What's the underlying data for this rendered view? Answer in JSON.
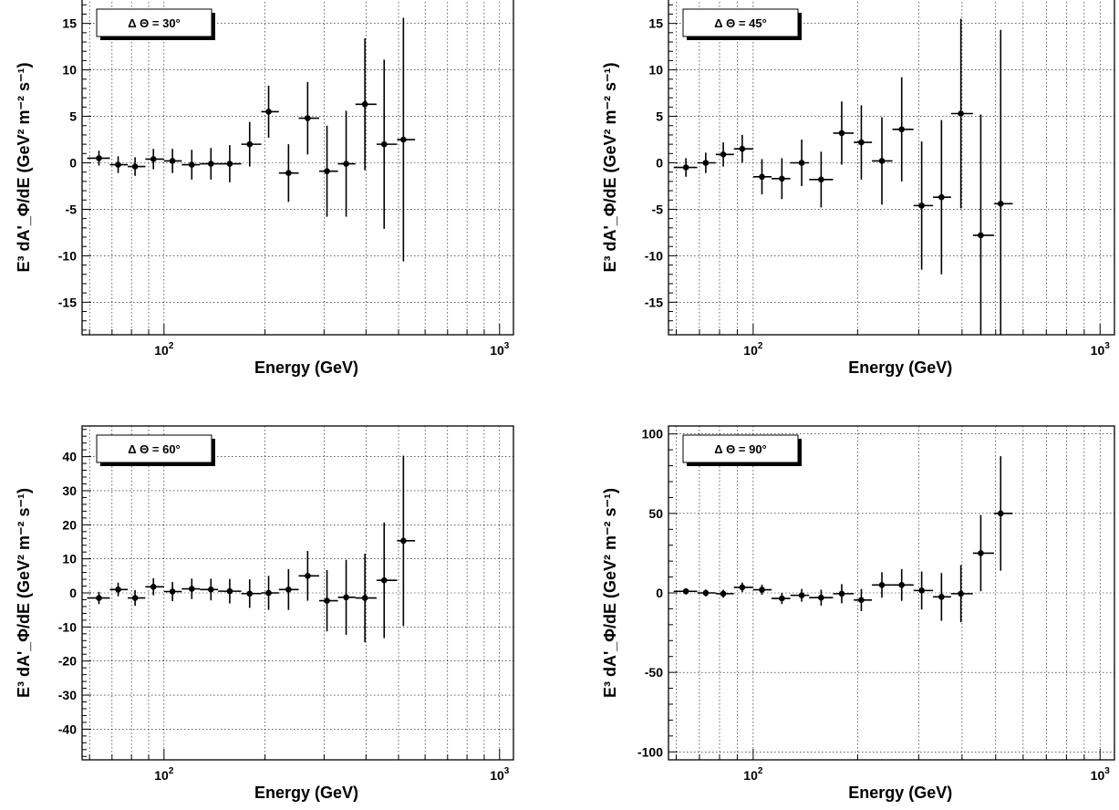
{
  "chart_data": [
    {
      "type": "scatter",
      "legend": "Δ Θ = 30°",
      "xlabel": "Energy (GeV)",
      "ylabel": "E³ dA'_Φ/dE (GeV² m⁻² s⁻¹)",
      "xscale": "log",
      "xlim": [
        57,
        1100
      ],
      "ylim": [
        -18.5,
        18.5
      ],
      "yticks": [
        -15,
        -10,
        -5,
        0,
        5,
        10,
        15
      ],
      "yminor": 1,
      "xtick_labels": [
        "10²",
        "10³"
      ],
      "grid": true,
      "legend_placement": "top-left",
      "points": [
        {
          "x": 64,
          "y": 0.5,
          "xlo": 59,
          "xhi": 69,
          "err": 0.8
        },
        {
          "x": 73,
          "y": -0.2,
          "xlo": 69,
          "xhi": 78,
          "err": 0.9
        },
        {
          "x": 82,
          "y": -0.4,
          "xlo": 78,
          "xhi": 88,
          "err": 1.0
        },
        {
          "x": 93,
          "y": 0.4,
          "xlo": 88,
          "xhi": 100,
          "err": 1.1
        },
        {
          "x": 106,
          "y": 0.2,
          "xlo": 100,
          "xhi": 113,
          "err": 1.3
        },
        {
          "x": 121,
          "y": -0.2,
          "xlo": 113,
          "xhi": 128,
          "err": 1.6
        },
        {
          "x": 138,
          "y": -0.1,
          "xlo": 128,
          "xhi": 145,
          "err": 1.7
        },
        {
          "x": 157,
          "y": -0.1,
          "xlo": 145,
          "xhi": 170,
          "err": 2.0
        },
        {
          "x": 180,
          "y": 2.0,
          "xlo": 170,
          "xhi": 195,
          "err": 2.4
        },
        {
          "x": 205,
          "y": 5.5,
          "xlo": 195,
          "xhi": 220,
          "err": 2.8
        },
        {
          "x": 235,
          "y": -1.1,
          "xlo": 220,
          "xhi": 252,
          "err": 3.1
        },
        {
          "x": 268,
          "y": 4.8,
          "xlo": 252,
          "xhi": 290,
          "err": 3.9
        },
        {
          "x": 306,
          "y": -0.9,
          "xlo": 290,
          "xhi": 330,
          "err": 4.9
        },
        {
          "x": 349,
          "y": -0.1,
          "xlo": 330,
          "xhi": 372,
          "err": 5.7
        },
        {
          "x": 397,
          "y": 6.3,
          "xlo": 372,
          "xhi": 430,
          "err": 7.1
        },
        {
          "x": 453,
          "y": 2.0,
          "xlo": 430,
          "xhi": 495,
          "err": 9.1
        },
        {
          "x": 517,
          "y": 2.5,
          "xlo": 495,
          "xhi": 560,
          "err": 13.1
        }
      ]
    },
    {
      "type": "scatter",
      "legend": "Δ Θ = 45°",
      "xlabel": "Energy (GeV)",
      "ylabel": "E³ dA'_Φ/dE (GeV² m⁻² s⁻¹)",
      "xscale": "log",
      "xlim": [
        57,
        1100
      ],
      "ylim": [
        -18.5,
        18.5
      ],
      "yticks": [
        -15,
        -10,
        -5,
        0,
        5,
        10,
        15
      ],
      "yminor": 1,
      "xtick_labels": [
        "10²",
        "10³"
      ],
      "grid": true,
      "legend_placement": "top-left",
      "points": [
        {
          "x": 64,
          "y": -0.5,
          "xlo": 59,
          "xhi": 69,
          "err": 1.0
        },
        {
          "x": 73,
          "y": 0.0,
          "xlo": 69,
          "xhi": 78,
          "err": 1.1
        },
        {
          "x": 82,
          "y": 0.9,
          "xlo": 78,
          "xhi": 88,
          "err": 1.3
        },
        {
          "x": 93,
          "y": 1.5,
          "xlo": 88,
          "xhi": 100,
          "err": 1.5
        },
        {
          "x": 106,
          "y": -1.5,
          "xlo": 100,
          "xhi": 113,
          "err": 1.9
        },
        {
          "x": 121,
          "y": -1.7,
          "xlo": 113,
          "xhi": 128,
          "err": 2.2
        },
        {
          "x": 138,
          "y": 0.0,
          "xlo": 128,
          "xhi": 145,
          "err": 2.5
        },
        {
          "x": 157,
          "y": -1.8,
          "xlo": 145,
          "xhi": 170,
          "err": 3.0
        },
        {
          "x": 180,
          "y": 3.2,
          "xlo": 170,
          "xhi": 195,
          "err": 3.4
        },
        {
          "x": 205,
          "y": 2.2,
          "xlo": 195,
          "xhi": 220,
          "err": 4.0
        },
        {
          "x": 235,
          "y": 0.2,
          "xlo": 220,
          "xhi": 252,
          "err": 4.7
        },
        {
          "x": 268,
          "y": 3.6,
          "xlo": 252,
          "xhi": 290,
          "err": 5.6
        },
        {
          "x": 306,
          "y": -4.6,
          "xlo": 290,
          "xhi": 330,
          "err": 6.9
        },
        {
          "x": 349,
          "y": -3.7,
          "xlo": 330,
          "xhi": 372,
          "err": 8.3
        },
        {
          "x": 397,
          "y": 5.3,
          "xlo": 372,
          "xhi": 430,
          "err": 10.2
        },
        {
          "x": 453,
          "y": -7.8,
          "xlo": 430,
          "xhi": 495,
          "err": 13.0
        },
        {
          "x": 517,
          "y": -4.4,
          "xlo": 495,
          "xhi": 560,
          "err": 18.7
        }
      ]
    },
    {
      "type": "scatter",
      "legend": "Δ Θ = 60°",
      "xlabel": "Energy (GeV)",
      "ylabel": "E³ dA'_Φ/dE (GeV² m⁻² s⁻¹)",
      "xscale": "log",
      "xlim": [
        57,
        1100
      ],
      "ylim": [
        -49,
        49
      ],
      "yticks": [
        -40,
        -30,
        -20,
        -10,
        0,
        10,
        20,
        30,
        40
      ],
      "yminor": 2,
      "xtick_labels": [
        "10²",
        "10³"
      ],
      "grid": true,
      "legend_placement": "top-left",
      "points": [
        {
          "x": 64,
          "y": -1.5,
          "xlo": 59,
          "xhi": 69,
          "err": 1.8
        },
        {
          "x": 73,
          "y": 1.0,
          "xlo": 69,
          "xhi": 78,
          "err": 2.0
        },
        {
          "x": 82,
          "y": -1.5,
          "xlo": 78,
          "xhi": 88,
          "err": 2.3
        },
        {
          "x": 93,
          "y": 1.8,
          "xlo": 88,
          "xhi": 100,
          "err": 2.5
        },
        {
          "x": 106,
          "y": 0.4,
          "xlo": 100,
          "xhi": 113,
          "err": 2.8
        },
        {
          "x": 121,
          "y": 1.2,
          "xlo": 113,
          "xhi": 128,
          "err": 3.0
        },
        {
          "x": 138,
          "y": 1.0,
          "xlo": 128,
          "xhi": 145,
          "err": 3.2
        },
        {
          "x": 157,
          "y": 0.5,
          "xlo": 145,
          "xhi": 170,
          "err": 3.6
        },
        {
          "x": 180,
          "y": -0.2,
          "xlo": 170,
          "xhi": 195,
          "err": 4.2
        },
        {
          "x": 205,
          "y": 0.0,
          "xlo": 195,
          "xhi": 220,
          "err": 5.0
        },
        {
          "x": 235,
          "y": 1.0,
          "xlo": 220,
          "xhi": 252,
          "err": 6.0
        },
        {
          "x": 268,
          "y": 5.0,
          "xlo": 252,
          "xhi": 290,
          "err": 7.3
        },
        {
          "x": 306,
          "y": -2.3,
          "xlo": 290,
          "xhi": 330,
          "err": 9.0
        },
        {
          "x": 349,
          "y": -1.3,
          "xlo": 330,
          "xhi": 372,
          "err": 11.0
        },
        {
          "x": 397,
          "y": -1.5,
          "xlo": 372,
          "xhi": 430,
          "err": 13.0
        },
        {
          "x": 453,
          "y": 3.7,
          "xlo": 430,
          "xhi": 495,
          "err": 17.0
        },
        {
          "x": 517,
          "y": 15.3,
          "xlo": 495,
          "xhi": 560,
          "err": 25.0
        }
      ]
    },
    {
      "type": "scatter",
      "legend": "Δ Θ = 90°",
      "xlabel": "Energy (GeV)",
      "ylabel": "E³ dA'_Φ/dE (GeV² m⁻² s⁻¹)",
      "xscale": "log",
      "xlim": [
        57,
        1100
      ],
      "ylim": [
        -105,
        105
      ],
      "yticks": [
        -100,
        -50,
        0,
        50,
        100
      ],
      "yminor": 10,
      "xtick_labels": [
        "10²",
        "10³"
      ],
      "grid": true,
      "legend_placement": "top-left",
      "points": [
        {
          "x": 64,
          "y": 1.0,
          "xlo": 59,
          "xhi": 69,
          "err": 2.0
        },
        {
          "x": 73,
          "y": 0.0,
          "xlo": 69,
          "xhi": 78,
          "err": 2.2
        },
        {
          "x": 82,
          "y": -0.5,
          "xlo": 78,
          "xhi": 88,
          "err": 2.5
        },
        {
          "x": 93,
          "y": 3.5,
          "xlo": 88,
          "xhi": 100,
          "err": 3.0
        },
        {
          "x": 106,
          "y": 2.0,
          "xlo": 100,
          "xhi": 113,
          "err": 3.2
        },
        {
          "x": 121,
          "y": -3.5,
          "xlo": 113,
          "xhi": 128,
          "err": 3.5
        },
        {
          "x": 138,
          "y": -1.5,
          "xlo": 128,
          "xhi": 145,
          "err": 4.0
        },
        {
          "x": 157,
          "y": -3.0,
          "xlo": 145,
          "xhi": 170,
          "err": 5.0
        },
        {
          "x": 180,
          "y": -0.5,
          "xlo": 170,
          "xhi": 195,
          "err": 6.0
        },
        {
          "x": 205,
          "y": -4.5,
          "xlo": 195,
          "xhi": 220,
          "err": 7.0
        },
        {
          "x": 235,
          "y": 5.0,
          "xlo": 220,
          "xhi": 252,
          "err": 8.0
        },
        {
          "x": 268,
          "y": 5.0,
          "xlo": 252,
          "xhi": 290,
          "err": 10.0
        },
        {
          "x": 306,
          "y": 1.5,
          "xlo": 290,
          "xhi": 330,
          "err": 12.0
        },
        {
          "x": 349,
          "y": -2.5,
          "xlo": 330,
          "xhi": 372,
          "err": 15.0
        },
        {
          "x": 397,
          "y": -0.5,
          "xlo": 372,
          "xhi": 430,
          "err": 18.0
        },
        {
          "x": 453,
          "y": 25.0,
          "xlo": 430,
          "xhi": 495,
          "err": 24.0
        },
        {
          "x": 517,
          "y": 50.0,
          "xlo": 495,
          "xhi": 560,
          "err": 36.0
        }
      ]
    }
  ]
}
